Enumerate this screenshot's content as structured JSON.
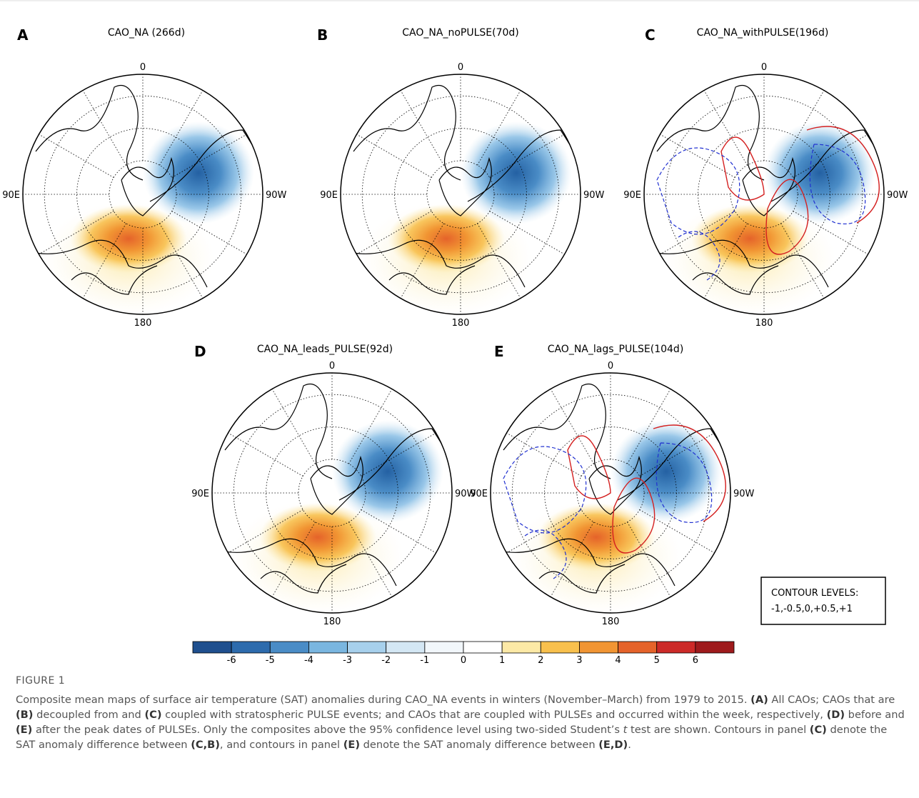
{
  "figure": {
    "panels": [
      {
        "letter": "A",
        "title": "CAO_NA (266d)",
        "top": "0",
        "left": "90E",
        "right": "90W",
        "bottom": "180"
      },
      {
        "letter": "B",
        "title": "CAO_NA_noPULSE(70d)",
        "top": "0",
        "left": "90E",
        "right": "90W",
        "bottom": "180"
      },
      {
        "letter": "C",
        "title": "CAO_NA_withPULSE(196d)",
        "top": "0",
        "left": "90E",
        "right": "90W",
        "bottom": "180"
      },
      {
        "letter": "D",
        "title": "CAO_NA_leads_PULSE(92d)",
        "top": "0",
        "left": "90E",
        "right": "90W",
        "bottom": "180"
      },
      {
        "letter": "E",
        "title": "CAO_NA_lags_PULSE(104d)",
        "top": "0",
        "left": "90E",
        "right": "90W",
        "bottom": "180"
      }
    ],
    "colorbar": {
      "ticks": [
        -6,
        -5,
        -4,
        -3,
        -2,
        -1,
        0,
        1,
        2,
        3,
        4,
        5,
        6
      ],
      "colors": [
        "#1f4f8e",
        "#2d6bad",
        "#4a8cc6",
        "#7ab6e0",
        "#a7d0ec",
        "#d4e7f4",
        "#f2f7fb",
        "#ffffff",
        "#fce9a6",
        "#f8c04d",
        "#f19533",
        "#e5632a",
        "#cc2a28",
        "#9e1a1c"
      ]
    },
    "contour_box": {
      "title": "CONTOUR LEVELS:",
      "levels": "-1,-0.5,0,+0.5,+1"
    }
  },
  "caption": {
    "label": "FIGURE 1",
    "runs": [
      {
        "text": "Composite mean maps of surface air temperature (SAT) anomalies during CAO_NA events in winters (November–March) from 1979 to 2015. "
      },
      {
        "text": "(A)",
        "style": "bold"
      },
      {
        "text": " All CAOs; CAOs that are "
      },
      {
        "text": "(B)",
        "style": "bold"
      },
      {
        "text": " decoupled from and "
      },
      {
        "text": "(C)",
        "style": "bold"
      },
      {
        "text": " coupled with stratospheric PULSE events; and CAOs that are coupled with PULSEs and occurred within the week, respectively, "
      },
      {
        "text": "(D)",
        "style": "bold"
      },
      {
        "text": " before and "
      },
      {
        "text": "(E)",
        "style": "bold"
      },
      {
        "text": " after the peak dates of PULSEs. Only the composites above the 95% confidence level using two-sided Student’s "
      },
      {
        "text": "t",
        "style": "italic"
      },
      {
        "text": " test are shown. Contours in panel "
      },
      {
        "text": "(C)",
        "style": "bold"
      },
      {
        "text": " denote the SAT anomaly difference between "
      },
      {
        "text": "(C,B)",
        "style": "bold"
      },
      {
        "text": ", and contours in panel "
      },
      {
        "text": "(E)",
        "style": "bold"
      },
      {
        "text": " denote the SAT anomaly difference between "
      },
      {
        "text": "(E,D)",
        "style": "bold"
      },
      {
        "text": "."
      }
    ]
  }
}
